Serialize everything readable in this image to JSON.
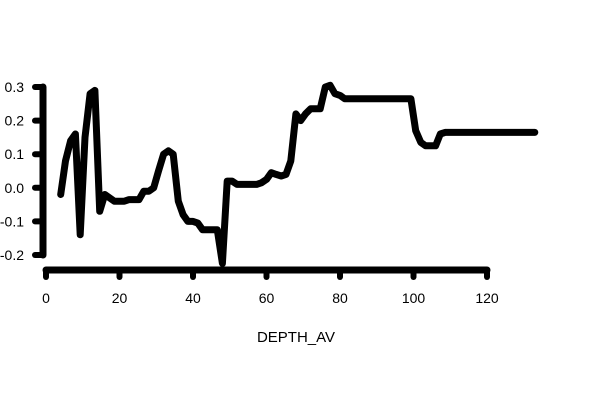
{
  "chart_data": {
    "type": "line",
    "title": "",
    "xlabel": "DEPTH_AV",
    "ylabel": "",
    "xlim": [
      0,
      120
    ],
    "ylim": [
      -0.2,
      0.3
    ],
    "x_ticks": [
      0,
      20,
      40,
      60,
      80,
      100,
      120
    ],
    "x_tick_labels": [
      "0",
      "20",
      "40",
      "60",
      "80",
      "100",
      "120"
    ],
    "y_ticks": [
      0.3,
      0.2,
      0.1,
      0.0,
      -0.1,
      -0.2
    ],
    "y_tick_labels": [
      "0.3",
      "0.2",
      "0.1",
      "0.0",
      "-0.1",
      "-0.2"
    ],
    "grid": false,
    "color": "#000000",
    "series": [
      {
        "x": [
          4.0,
          5.3,
          6.7,
          8.0,
          9.3,
          10.6,
          12.0,
          13.3,
          14.6,
          16.0,
          17.3,
          18.6,
          20.0,
          21.3,
          22.6,
          24.0,
          25.3,
          26.6,
          28.0,
          29.3,
          30.6,
          32.0,
          33.3,
          34.6,
          36.0,
          37.3,
          38.6,
          40.0,
          41.3,
          42.6,
          44.0,
          45.3,
          46.6,
          48.0,
          49.3,
          50.6,
          52.0,
          53.3,
          54.6,
          56.0,
          57.3,
          58.6,
          60.0,
          61.3,
          62.6,
          64.0,
          65.3,
          66.6,
          68.0,
          69.3,
          70.6,
          72.0,
          73.3,
          74.6,
          76.0,
          77.3,
          78.6,
          80.0,
          81.3,
          82.6,
          84.0,
          90.0,
          96.0,
          98.0,
          99.3,
          100.6,
          102.0,
          103.3,
          104.6,
          106.0,
          107.3,
          108.6,
          110.0,
          116.0,
          122.0,
          128.0,
          133.0
        ],
        "y": [
          -0.02,
          0.08,
          0.14,
          0.16,
          -0.14,
          0.15,
          0.28,
          0.29,
          -0.07,
          -0.02,
          -0.03,
          -0.04,
          -0.04,
          -0.04,
          -0.035,
          -0.035,
          -0.035,
          -0.01,
          -0.01,
          0.0,
          0.05,
          0.1,
          0.11,
          0.1,
          -0.04,
          -0.08,
          -0.1,
          -0.1,
          -0.105,
          -0.125,
          -0.125,
          -0.125,
          -0.125,
          -0.225,
          0.02,
          0.02,
          0.01,
          0.01,
          0.01,
          0.01,
          0.01,
          0.015,
          0.025,
          0.045,
          0.04,
          0.035,
          0.04,
          0.08,
          0.22,
          0.2,
          0.22,
          0.235,
          0.235,
          0.235,
          0.3,
          0.305,
          0.28,
          0.275,
          0.265,
          0.265,
          0.265,
          0.265,
          0.265,
          0.265,
          0.265,
          0.17,
          0.135,
          0.125,
          0.125,
          0.125,
          0.16,
          0.165,
          0.165,
          0.165,
          0.165,
          0.165,
          0.165
        ]
      }
    ]
  }
}
